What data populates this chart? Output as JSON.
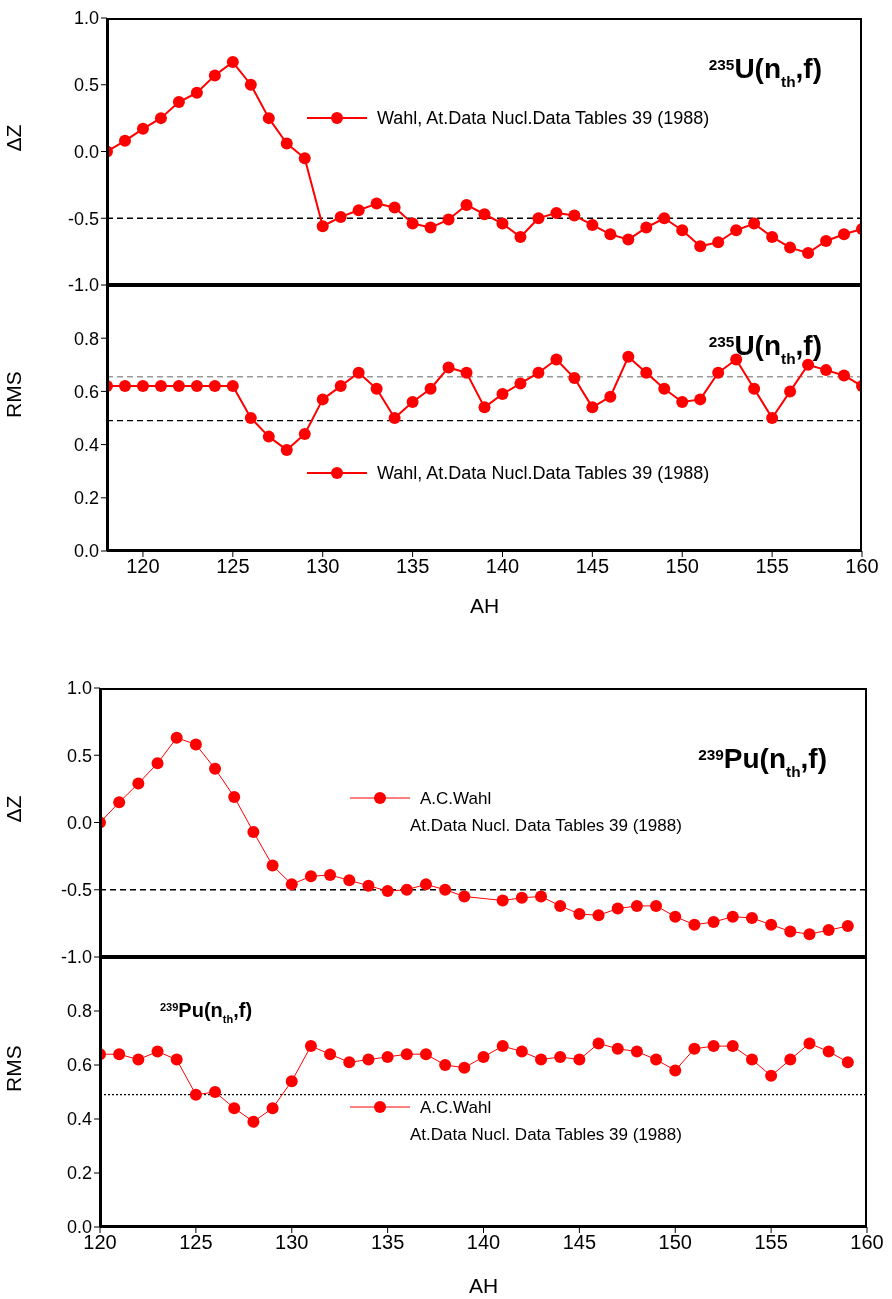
{
  "chart_data": [
    {
      "type": "line",
      "title": "$^{235}$U(n$_{th}$,f)",
      "ylabel": "ΔZ",
      "xlim": [
        118,
        160
      ],
      "xticks": [
        120,
        125,
        130,
        135,
        140,
        145,
        150,
        155,
        160
      ],
      "ylim": [
        -1,
        1
      ],
      "yticks": [
        {
          "value": -1,
          "label": "-1.0"
        },
        {
          "value": -0.5,
          "label": "-0.5"
        },
        {
          "value": 0,
          "label": "0.0"
        },
        {
          "value": 0.5,
          "label": "0.5"
        },
        {
          "value": 1,
          "label": "1.0"
        }
      ],
      "tick_labels": "y",
      "legend": "top right",
      "marker": "circle",
      "line_style": "solid",
      "ref_lines": [
        {
          "axis": "y",
          "value": -0.5,
          "color": "#000000",
          "line_style": "dashed"
        }
      ],
      "series": [
        {
          "name": "Wahl, At.Data Nucl.Data Tables 39 (1988)",
          "color": "#ff0000",
          "x": [
            118,
            119,
            120,
            121,
            122,
            123,
            124,
            125,
            126,
            127,
            128,
            129,
            130,
            131,
            132,
            133,
            134,
            135,
            136,
            137,
            138,
            139,
            140,
            141,
            142,
            143,
            144,
            145,
            146,
            147,
            148,
            149,
            150,
            151,
            152,
            153,
            154,
            155,
            156,
            157,
            158,
            159,
            160
          ],
          "values": [
            0.0,
            0.08,
            0.17,
            0.25,
            0.37,
            0.44,
            0.57,
            0.67,
            0.5,
            0.25,
            0.06,
            -0.05,
            -0.56,
            -0.49,
            -0.44,
            -0.39,
            -0.42,
            -0.54,
            -0.57,
            -0.51,
            -0.4,
            -0.47,
            -0.54,
            -0.64,
            -0.5,
            -0.46,
            -0.48,
            -0.55,
            -0.62,
            -0.66,
            -0.57,
            -0.5,
            -0.59,
            -0.71,
            -0.68,
            -0.59,
            -0.54,
            -0.64,
            -0.72,
            -0.76,
            -0.67,
            -0.62,
            -0.58
          ]
        }
      ]
    },
    {
      "type": "line",
      "title": "$^{235}$U(n$_{th}$,f)",
      "xlabel": "AH",
      "ylabel": "RMS",
      "xlim": [
        118,
        160
      ],
      "xticks": [
        120,
        125,
        130,
        135,
        140,
        145,
        150,
        155,
        160
      ],
      "ylim": [
        0,
        1
      ],
      "yticks": [
        {
          "value": 0,
          "label": "0.0"
        },
        {
          "value": 0.2,
          "label": "0.2"
        },
        {
          "value": 0.4,
          "label": "0.4"
        },
        {
          "value": 0.6,
          "label": "0.6"
        },
        {
          "value": 0.8,
          "label": "0.8"
        }
      ],
      "legend": "bottom right",
      "marker": "circle",
      "line_style": "solid",
      "ref_lines": [
        {
          "axis": "y",
          "value": 0.655,
          "color": "#999999",
          "line_style": "dashed"
        },
        {
          "axis": "y",
          "value": 0.49,
          "color": "#000000",
          "line_style": "dashed"
        }
      ],
      "series": [
        {
          "name": "Wahl, At.Data Nucl.Data Tables 39 (1988)",
          "color": "#ff0000",
          "x": [
            118,
            119,
            120,
            121,
            122,
            123,
            124,
            125,
            126,
            127,
            128,
            129,
            130,
            131,
            132,
            133,
            134,
            135,
            136,
            137,
            138,
            139,
            140,
            141,
            142,
            143,
            144,
            145,
            146,
            147,
            148,
            149,
            150,
            151,
            152,
            153,
            154,
            155,
            156,
            157,
            158,
            159,
            160
          ],
          "values": [
            0.62,
            0.62,
            0.62,
            0.62,
            0.62,
            0.62,
            0.62,
            0.62,
            0.5,
            0.43,
            0.38,
            0.44,
            0.57,
            0.62,
            0.67,
            0.61,
            0.5,
            0.56,
            0.61,
            0.69,
            0.67,
            0.54,
            0.59,
            0.63,
            0.67,
            0.72,
            0.65,
            0.54,
            0.58,
            0.73,
            0.67,
            0.61,
            0.56,
            0.57,
            0.67,
            0.72,
            0.61,
            0.5,
            0.6,
            0.7,
            0.68,
            0.66,
            0.62
          ]
        }
      ]
    },
    {
      "type": "line",
      "title": "$^{239}$Pu(n$_{th}$,f)",
      "ylabel": "ΔZ",
      "xlim": [
        120,
        160
      ],
      "xticks": [
        120,
        125,
        130,
        135,
        140,
        145,
        150,
        155,
        160
      ],
      "ylim": [
        -1,
        1
      ],
      "yticks": [
        {
          "value": -1,
          "label": "-1.0"
        },
        {
          "value": -0.5,
          "label": "-0.5"
        },
        {
          "value": 0,
          "label": "0.0"
        },
        {
          "value": 0.5,
          "label": "0.5"
        },
        {
          "value": 1,
          "label": "1.0"
        }
      ],
      "tick_labels": "y",
      "legend": "top right",
      "marker": "circle",
      "line_style": "solid",
      "ref_lines": [
        {
          "axis": "y",
          "value": -0.5,
          "color": "#000000",
          "line_style": "dashed"
        }
      ],
      "series": [
        {
          "name": "A.C.Wahl\nAt.Data Nucl. Data Tables 39 (1988)",
          "color": "#ff0000",
          "x": [
            120,
            121,
            122,
            123,
            124,
            125,
            126,
            127,
            128,
            129,
            130,
            131,
            132,
            133,
            134,
            135,
            136,
            137,
            138,
            139,
            141,
            142,
            143,
            144,
            145,
            146,
            147,
            148,
            149,
            150,
            151,
            152,
            153,
            154,
            155,
            156,
            157,
            158,
            159
          ],
          "values": [
            0.0,
            0.15,
            0.29,
            0.44,
            0.63,
            0.58,
            0.4,
            0.19,
            -0.07,
            -0.32,
            -0.46,
            -0.4,
            -0.39,
            -0.43,
            -0.47,
            -0.51,
            -0.5,
            -0.46,
            -0.5,
            -0.55,
            -0.58,
            -0.56,
            -0.55,
            -0.62,
            -0.68,
            -0.69,
            -0.64,
            -0.62,
            -0.62,
            -0.7,
            -0.76,
            -0.74,
            -0.7,
            -0.71,
            -0.76,
            -0.81,
            -0.83,
            -0.8,
            -0.77
          ]
        }
      ]
    },
    {
      "type": "line",
      "title": "$^{239}$Pu(n$_{th}$,f)",
      "xlabel": "AH",
      "ylabel": "RMS",
      "xlim": [
        120,
        160
      ],
      "xticks": [
        120,
        125,
        130,
        135,
        140,
        145,
        150,
        155,
        160
      ],
      "ylim": [
        0,
        1
      ],
      "yticks": [
        {
          "value": 0,
          "label": "0.0"
        },
        {
          "value": 0.2,
          "label": "0.2"
        },
        {
          "value": 0.4,
          "label": "0.4"
        },
        {
          "value": 0.6,
          "label": "0.6"
        },
        {
          "value": 0.8,
          "label": "0.8"
        }
      ],
      "legend": "bottom right",
      "marker": "circle",
      "line_style": "solid",
      "ref_lines": [
        {
          "axis": "y",
          "value": 0.49,
          "color": "#000000",
          "line_style": "dotted"
        }
      ],
      "series": [
        {
          "name": "A.C.Wahl\nAt.Data Nucl. Data Tables 39 (1988)",
          "color": "#ff0000",
          "x": [
            120,
            121,
            122,
            123,
            124,
            125,
            126,
            127,
            128,
            129,
            130,
            131,
            132,
            133,
            134,
            135,
            136,
            137,
            138,
            139,
            140,
            141,
            142,
            143,
            144,
            145,
            146,
            147,
            148,
            149,
            150,
            151,
            152,
            153,
            154,
            155,
            156,
            157,
            158,
            159
          ],
          "values": [
            0.64,
            0.64,
            0.62,
            0.65,
            0.62,
            0.49,
            0.5,
            0.44,
            0.39,
            0.44,
            0.54,
            0.67,
            0.64,
            0.61,
            0.62,
            0.63,
            0.64,
            0.64,
            0.6,
            0.59,
            0.63,
            0.67,
            0.65,
            0.62,
            0.63,
            0.62,
            0.68,
            0.66,
            0.65,
            0.62,
            0.58,
            0.66,
            0.67,
            0.67,
            0.62,
            0.56,
            0.62,
            0.68,
            0.65,
            0.61
          ]
        }
      ]
    }
  ]
}
